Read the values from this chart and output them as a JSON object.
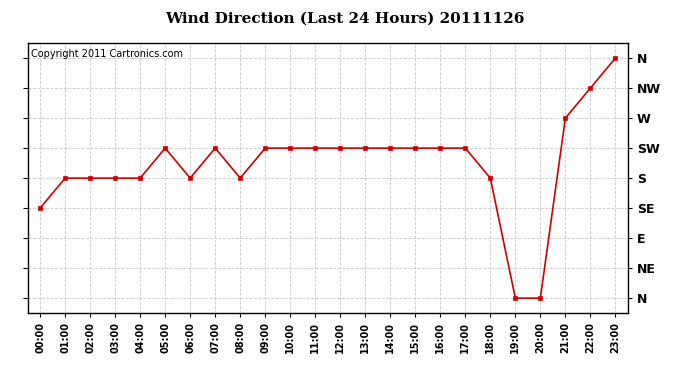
{
  "title": "Wind Direction (Last 24 Hours) 20111126",
  "copyright_text": "Copyright 2011 Cartronics.com",
  "x_labels": [
    "00:00",
    "01:00",
    "02:00",
    "03:00",
    "04:00",
    "05:00",
    "06:00",
    "07:00",
    "08:00",
    "09:00",
    "10:00",
    "11:00",
    "12:00",
    "13:00",
    "14:00",
    "15:00",
    "16:00",
    "17:00",
    "18:00",
    "19:00",
    "20:00",
    "21:00",
    "22:00",
    "23:00"
  ],
  "y_tick_labels_right": [
    "N",
    "NW",
    "W",
    "SW",
    "S",
    "SE",
    "E",
    "NE",
    "N"
  ],
  "y_tick_positions": [
    8,
    7,
    6,
    5,
    4,
    3,
    2,
    1,
    0
  ],
  "data_y": [
    3,
    4,
    4,
    4,
    4,
    5,
    4,
    5,
    4,
    5,
    5,
    5,
    5,
    5,
    5,
    5,
    5,
    5,
    4,
    0,
    0,
    6,
    7,
    8
  ],
  "line_color": "#cc0000",
  "marker": "s",
  "marker_size": 3,
  "bg_color": "#ffffff",
  "grid_color": "#c8c8c8",
  "fig_bg": "#ffffff",
  "title_fontsize": 11,
  "copyright_fontsize": 7,
  "tick_fontsize": 7,
  "y_label_fontsize": 9
}
